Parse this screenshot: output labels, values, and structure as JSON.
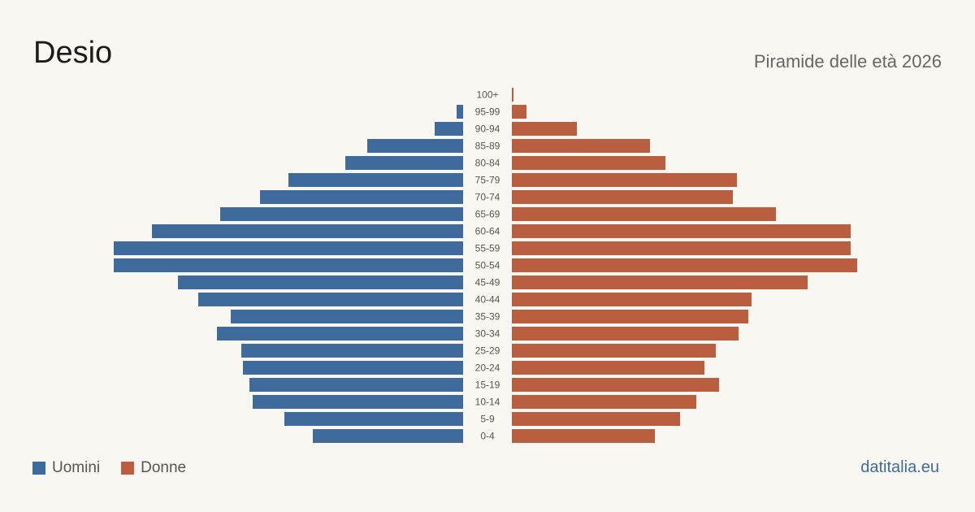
{
  "title": "Desio",
  "subtitle": "Piramide delle età 2026",
  "source": "datitalia.eu",
  "legend": {
    "men": "Uomini",
    "women": "Donne"
  },
  "colors": {
    "men": "#3f6b9c",
    "women": "#b95e3e"
  },
  "chart_data": {
    "type": "bar",
    "orientation": "horizontal",
    "layout": "population-pyramid",
    "categories": [
      "100+",
      "95-99",
      "90-94",
      "85-89",
      "80-84",
      "75-79",
      "70-74",
      "65-69",
      "60-64",
      "55-59",
      "50-54",
      "45-49",
      "40-44",
      "35-39",
      "30-34",
      "25-29",
      "20-24",
      "15-19",
      "10-14",
      "5-9",
      "0-4"
    ],
    "series": [
      {
        "name": "Uomini",
        "values": [
          0,
          8,
          35,
          118,
          145,
          215,
          250,
          299,
          383,
          430,
          430,
          351,
          326,
          286,
          303,
          273,
          271,
          263,
          259,
          220,
          185
        ]
      },
      {
        "name": "Donne",
        "values": [
          2,
          18,
          80,
          170,
          189,
          277,
          272,
          325,
          417,
          417,
          425,
          364,
          295,
          291,
          279,
          251,
          237,
          255,
          227,
          207,
          176
        ]
      }
    ]
  }
}
